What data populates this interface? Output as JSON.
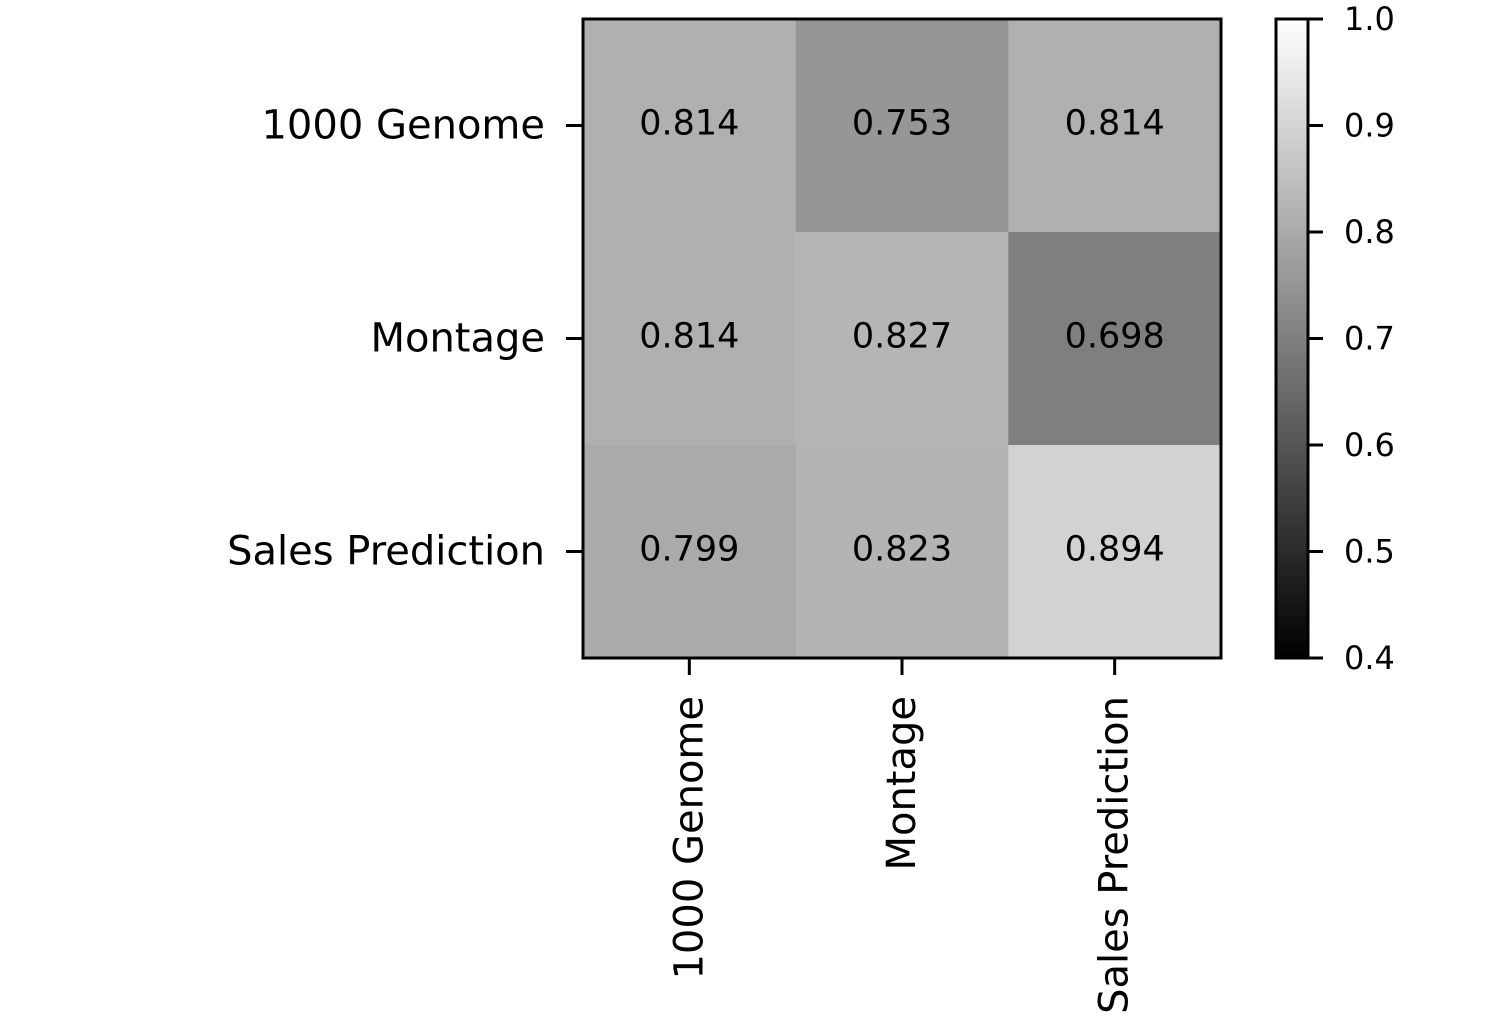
{
  "chart_data": {
    "type": "heatmap",
    "title": "",
    "xlabel": "",
    "ylabel": "",
    "rows": [
      "1000 Genome",
      "Montage",
      "Sales Prediction"
    ],
    "columns": [
      "1000 Genome",
      "Montage",
      "Sales Prediction"
    ],
    "values": [
      [
        0.814,
        0.753,
        0.814
      ],
      [
        0.814,
        0.827,
        0.698
      ],
      [
        0.799,
        0.823,
        0.894
      ]
    ],
    "value_labels": [
      [
        "0.814",
        "0.753",
        "0.814"
      ],
      [
        "0.814",
        "0.827",
        "0.698"
      ],
      [
        "0.799",
        "0.823",
        "0.894"
      ]
    ],
    "colormap": "gray",
    "colorbar": {
      "range": [
        0.4,
        1.0
      ],
      "ticks": [
        "1.0",
        "0.9",
        "0.8",
        "0.7",
        "0.6",
        "0.5",
        "0.4"
      ]
    },
    "colors": {
      "low": "#000000",
      "high": "#ffffff"
    }
  }
}
